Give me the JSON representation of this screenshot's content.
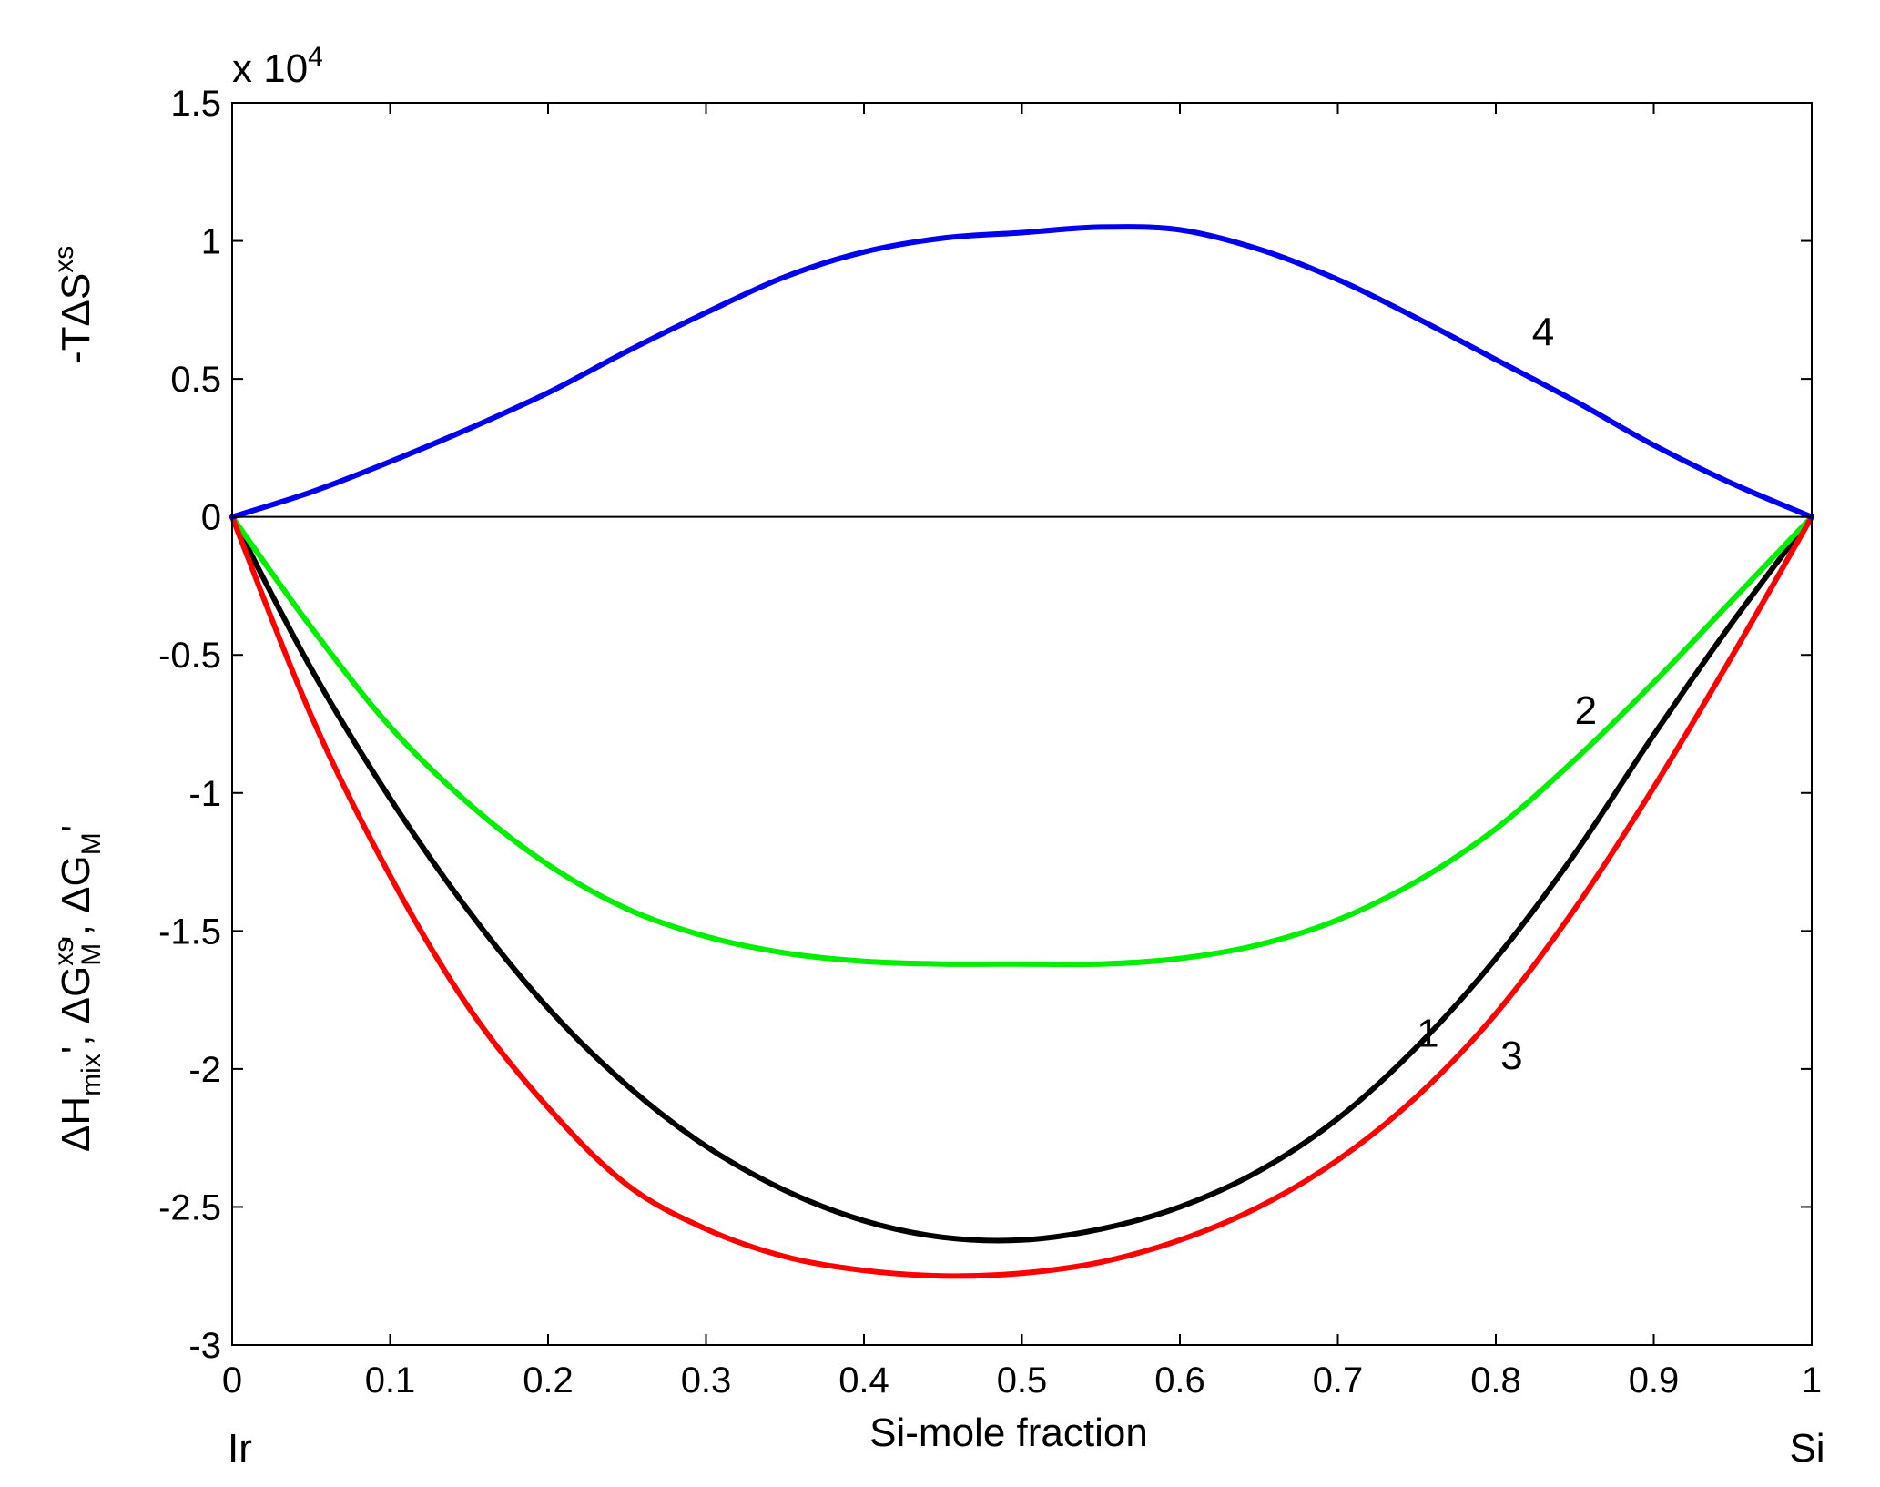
{
  "chart_data": {
    "type": "line",
    "xlabel": "Si-mole fraction",
    "x_end_labels": {
      "left": "Ir",
      "right": "Si"
    },
    "y_exponent_label": {
      "prefix": "x 10",
      "power": "4"
    },
    "xlim": [
      0,
      1
    ],
    "ylim": [
      -3,
      1.5
    ],
    "x_ticks": [
      0,
      0.1,
      0.2,
      0.3,
      0.4,
      0.5,
      0.6,
      0.7,
      0.8,
      0.9,
      1
    ],
    "x_tick_labels": [
      "0",
      "0.1",
      "0.2",
      "0.3",
      "0.4",
      "0.5",
      "0.6",
      "0.7",
      "0.8",
      "0.9",
      "1"
    ],
    "y_ticks": [
      -3,
      -2.5,
      -2,
      -1.5,
      -1,
      -0.5,
      0,
      0.5,
      1,
      1.5
    ],
    "y_tick_labels": [
      "-3",
      "-2.5",
      "-2",
      "-1.5",
      "-1",
      "-0.5",
      "0",
      "0.5",
      "1",
      "1.5"
    ],
    "ylabel_upper": {
      "main": "-TΔS",
      "sup": "xs"
    },
    "ylabel_lower": {
      "h": "ΔH",
      "h_sub": "mix",
      "sep1": "', ",
      "gxs": "ΔG",
      "gxs_sup": "xs",
      "gxs_sub": "M",
      "sep2": "', ",
      "gm": "ΔG",
      "gm_sub": "M",
      "sep3": "'"
    },
    "grid": false,
    "zero_line": true,
    "x": [
      0,
      0.05,
      0.1,
      0.15,
      0.2,
      0.25,
      0.3,
      0.35,
      0.4,
      0.45,
      0.5,
      0.55,
      0.6,
      0.65,
      0.7,
      0.75,
      0.8,
      0.85,
      0.9,
      0.95,
      1
    ],
    "series": [
      {
        "label": "1",
        "color": "#000000",
        "values": [
          0,
          -0.55,
          -1.02,
          -1.43,
          -1.78,
          -2.06,
          -2.28,
          -2.44,
          -2.55,
          -2.61,
          -2.62,
          -2.58,
          -2.5,
          -2.37,
          -2.18,
          -1.92,
          -1.6,
          -1.22,
          -0.79,
          -0.38,
          0
        ],
        "label_at": [
          0.757,
          -1.92
        ]
      },
      {
        "label": "2",
        "color": "#00ee00",
        "values": [
          0,
          -0.4,
          -0.76,
          -1.04,
          -1.26,
          -1.42,
          -1.52,
          -1.58,
          -1.61,
          -1.62,
          -1.62,
          -1.62,
          -1.6,
          -1.55,
          -1.46,
          -1.32,
          -1.13,
          -0.88,
          -0.6,
          -0.3,
          0
        ],
        "label_at": [
          0.857,
          -0.75
        ]
      },
      {
        "label": "3",
        "color": "#ff0000",
        "values": [
          0,
          -0.72,
          -1.3,
          -1.78,
          -2.14,
          -2.42,
          -2.58,
          -2.68,
          -2.73,
          -2.75,
          -2.74,
          -2.7,
          -2.62,
          -2.5,
          -2.33,
          -2.1,
          -1.8,
          -1.42,
          -0.98,
          -0.5,
          0
        ],
        "label_at": [
          0.81,
          -2.0
        ]
      },
      {
        "label": "4",
        "color": "#0000ee",
        "values": [
          0,
          0.09,
          0.2,
          0.32,
          0.45,
          0.6,
          0.74,
          0.87,
          0.96,
          1.01,
          1.03,
          1.05,
          1.04,
          0.97,
          0.86,
          0.72,
          0.57,
          0.42,
          0.26,
          0.12,
          0
        ],
        "label_at": [
          0.83,
          0.62
        ]
      }
    ]
  }
}
